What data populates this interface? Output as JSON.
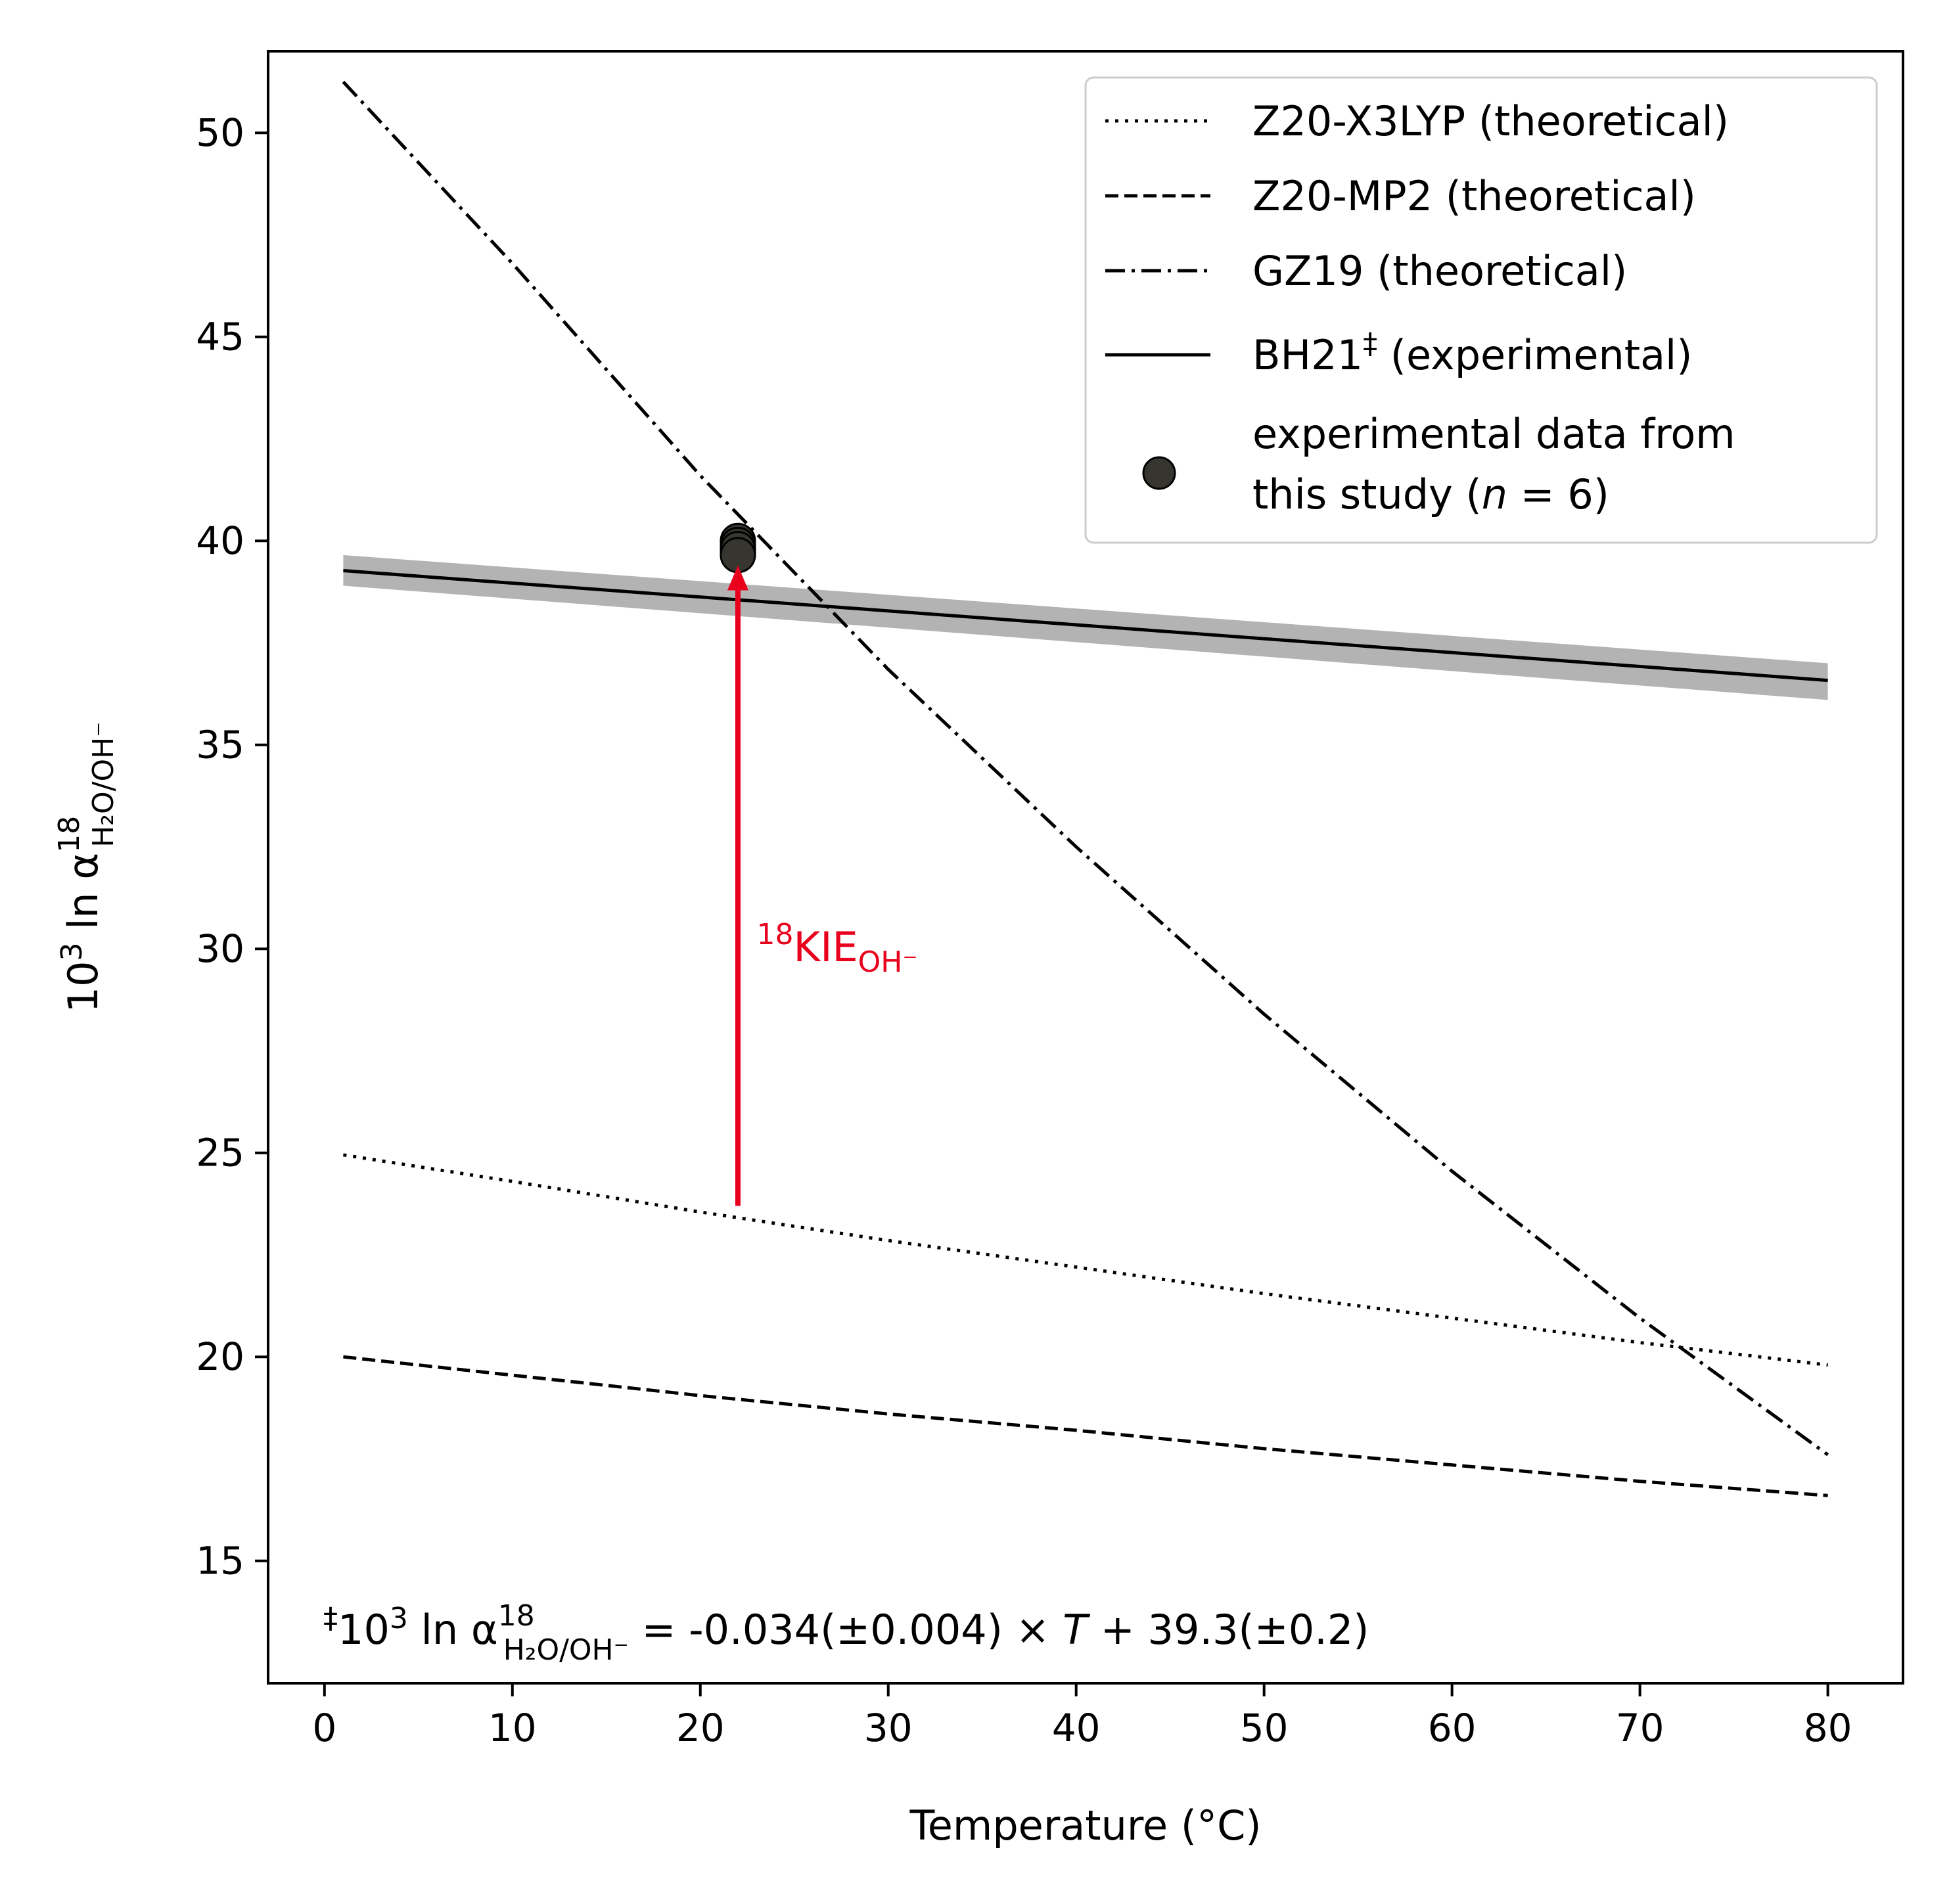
{
  "chart_data": {
    "type": "line",
    "title": "",
    "xlabel": "Temperature (°C)",
    "ylabel": {
      "prefix": "10",
      "prefix_sup": "3",
      "ln": " ln α",
      "sup": "18",
      "sub": "H₂O/OH⁻"
    },
    "xlim": [
      -3,
      84
    ],
    "ylim": [
      12,
      52
    ],
    "xticks": [
      0,
      10,
      20,
      30,
      40,
      50,
      60,
      70,
      80
    ],
    "yticks": [
      15,
      20,
      25,
      30,
      35,
      40,
      45,
      50
    ],
    "grid": false,
    "legend_position": "top-right",
    "series": [
      {
        "name": "Z20-X3LYP (theoretical)",
        "style": "dotted",
        "color": "#000000",
        "x": [
          1,
          10,
          20,
          30,
          40,
          50,
          60,
          70,
          80
        ],
        "y": [
          24.95,
          24.3,
          23.55,
          22.85,
          22.2,
          21.55,
          20.95,
          20.35,
          19.8
        ]
      },
      {
        "name": "Z20-MP2 (theoretical)",
        "style": "dashed",
        "color": "#000000",
        "x": [
          1,
          10,
          20,
          30,
          40,
          50,
          60,
          70,
          80
        ],
        "y": [
          20.0,
          19.55,
          19.05,
          18.6,
          18.2,
          17.75,
          17.35,
          16.95,
          16.6
        ]
      },
      {
        "name": "GZ19 (theoretical)",
        "style": "dashdot",
        "color": "#000000",
        "x": [
          1,
          10,
          20,
          30,
          40,
          50,
          60,
          70,
          80
        ],
        "y": [
          51.25,
          46.8,
          41.6,
          36.85,
          32.5,
          28.4,
          24.55,
          20.95,
          17.6
        ]
      },
      {
        "name_main": "BH21",
        "name_sup": "‡",
        "name_rest": " (experimental)",
        "style": "solid",
        "color": "#000000",
        "band_color": "#b3b3b3",
        "x": [
          1,
          80
        ],
        "y": [
          39.27,
          36.58
        ],
        "band_lower": [
          38.9,
          36.1
        ],
        "band_upper": [
          39.65,
          37.0
        ]
      }
    ],
    "points": {
      "name_line1": "experimental data from",
      "name_line2_prefix": "this study (",
      "name_line2_n": "n",
      "name_line2_suffix": " = 6)",
      "color": "#363530",
      "edge_color": "#000000",
      "x": [
        22,
        22,
        22,
        22,
        22,
        22
      ],
      "y": [
        40.0,
        39.9,
        39.75,
        39.7,
        39.8,
        39.65
      ]
    },
    "annotation": {
      "label_sup": "18",
      "label_main": "KIE",
      "label_sub": "OH⁻",
      "color": "#e8001c",
      "arrow_x": 22,
      "arrow_from_y": 23.7,
      "arrow_to_y": 39.4,
      "label_x": 23,
      "label_y": 29.7
    },
    "footnote": {
      "dagger": "‡",
      "prefix": "10",
      "prefix_sup": "3",
      "ln": " ln α",
      "sup": "18",
      "sub": "H₂O/OH⁻",
      "eq_part1": " = -0.034(±0.004) × ",
      "eq_T": "T",
      "eq_part2": " + 39.3(±0.2)"
    }
  }
}
